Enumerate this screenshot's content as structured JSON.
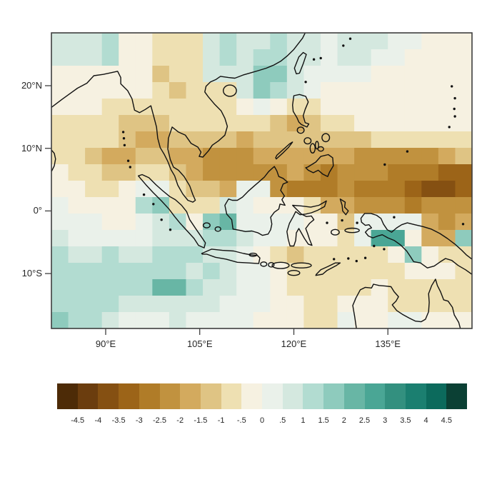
{
  "figure": {
    "description": "Gridded anomaly map over the Maritime Continent with brown-to-teal diverging color scale and horizontal colorbar legend"
  },
  "chart_data": {
    "type": "heatmap",
    "title": "",
    "xlabel": "",
    "ylabel": "",
    "lon_range": [
      81.34,
      148.42
    ],
    "lat_range": [
      -18.77,
      28.44
    ],
    "x_ticks": [
      {
        "label": "90°E",
        "lon": 90
      },
      {
        "label": "105°E",
        "lon": 105
      },
      {
        "label": "120°E",
        "lon": 120
      },
      {
        "label": "135°E",
        "lon": 135
      }
    ],
    "y_ticks": [
      {
        "label": "20°N",
        "lat": 20
      },
      {
        "label": "10°N",
        "lat": 10
      },
      {
        "label": "0°",
        "lat": 0
      },
      {
        "label": "10°S",
        "lat": -10
      }
    ],
    "colorbar": {
      "labels": [
        "-4.5",
        "-4",
        "-3.5",
        "-3",
        "-2.5",
        "-2",
        "-1.5",
        "-1",
        "-.5",
        "0",
        ".5",
        "1",
        "1.5",
        "2",
        "2.5",
        "3",
        "3.5",
        "4",
        "4.5"
      ],
      "palette": [
        "#4d2b07",
        "#6b3d0e",
        "#855012",
        "#9c6418",
        "#b07c28",
        "#c1923f",
        "#d3aa5e",
        "#dfc484",
        "#eee0b2",
        "#f6f1e1",
        "#eaf1ea",
        "#d4e8df",
        "#b2dcd1",
        "#8ecbbd",
        "#68b6a5",
        "#4aa695",
        "#33907f",
        "#1b7f70",
        "#0c6a5c",
        "#0b4034"
      ]
    },
    "grid_cols": 25,
    "grid_rows": 18,
    "grid": [
      [
        11,
        11,
        11,
        12,
        9,
        9,
        8,
        8,
        8,
        11,
        12,
        11,
        11,
        12,
        11,
        11,
        10,
        11,
        11,
        11,
        10,
        10,
        9,
        9,
        9
      ],
      [
        11,
        11,
        11,
        12,
        9,
        9,
        8,
        8,
        8,
        11,
        12,
        11,
        12,
        12,
        11,
        11,
        10,
        11,
        11,
        10,
        10,
        9,
        9,
        9,
        9
      ],
      [
        9,
        9,
        9,
        9,
        9,
        9,
        7,
        8,
        8,
        11,
        11,
        11,
        13,
        13,
        11,
        10,
        10,
        10,
        10,
        9,
        9,
        9,
        9,
        9,
        9
      ],
      [
        9,
        9,
        9,
        9,
        9,
        9,
        8,
        7,
        8,
        8,
        8,
        11,
        13,
        12,
        11,
        10,
        9,
        9,
        9,
        9,
        9,
        9,
        9,
        9,
        9
      ],
      [
        9,
        9,
        9,
        8,
        8,
        8,
        8,
        8,
        8,
        8,
        8,
        9,
        10,
        9,
        8,
        8,
        9,
        9,
        9,
        9,
        9,
        9,
        9,
        9,
        9
      ],
      [
        8,
        8,
        8,
        8,
        7,
        7,
        7,
        8,
        8,
        8,
        8,
        8,
        8,
        7,
        6,
        7,
        8,
        8,
        9,
        9,
        9,
        9,
        9,
        9,
        9
      ],
      [
        8,
        8,
        8,
        8,
        7,
        6,
        6,
        7,
        7,
        7,
        7,
        6,
        7,
        7,
        7,
        7,
        7,
        7,
        7,
        8,
        8,
        8,
        8,
        8,
        8
      ],
      [
        8,
        8,
        7,
        6,
        6,
        7,
        7,
        6,
        6,
        5,
        5,
        5,
        6,
        6,
        6,
        6,
        6,
        6,
        5,
        5,
        5,
        5,
        5,
        6,
        7
      ],
      [
        9,
        8,
        8,
        7,
        7,
        8,
        8,
        7,
        6,
        5,
        5,
        5,
        5,
        5,
        6,
        5,
        4,
        5,
        5,
        5,
        4,
        4,
        4,
        3,
        3
      ],
      [
        9,
        9,
        8,
        8,
        9,
        10,
        10,
        8,
        7,
        7,
        6,
        10,
        10,
        5,
        4,
        4,
        4,
        5,
        4,
        4,
        4,
        3,
        2,
        2,
        3
      ],
      [
        10,
        9,
        9,
        9,
        9,
        12,
        13,
        8,
        8,
        8,
        11,
        10,
        9,
        9,
        9,
        8,
        6,
        6,
        5,
        5,
        5,
        4,
        5,
        5,
        5
      ],
      [
        10,
        10,
        10,
        9,
        9,
        10,
        11,
        12,
        9,
        13,
        14,
        10,
        10,
        10,
        10,
        9,
        9,
        7,
        10,
        10,
        10,
        10,
        6,
        5,
        6
      ],
      [
        11,
        10,
        10,
        10,
        10,
        10,
        11,
        11,
        11,
        12,
        12,
        11,
        10,
        10,
        9,
        9,
        9,
        8,
        10,
        15,
        15,
        9,
        6,
        6,
        13
      ],
      [
        12,
        11,
        11,
        12,
        11,
        11,
        12,
        12,
        12,
        11,
        11,
        10,
        9,
        8,
        7,
        8,
        8,
        8,
        8,
        8,
        9,
        13,
        9,
        8,
        8
      ],
      [
        12,
        12,
        12,
        12,
        12,
        12,
        12,
        12,
        11,
        12,
        11,
        10,
        10,
        9,
        8,
        8,
        8,
        8,
        8,
        8,
        8,
        9,
        9,
        9,
        8
      ],
      [
        12,
        12,
        12,
        12,
        12,
        12,
        14,
        14,
        12,
        11,
        11,
        10,
        10,
        9,
        8,
        8,
        8,
        8,
        8,
        9,
        8,
        8,
        8,
        8,
        8
      ],
      [
        12,
        12,
        12,
        12,
        11,
        11,
        11,
        11,
        11,
        11,
        10,
        10,
        10,
        9,
        9,
        8,
        8,
        9,
        9,
        9,
        8,
        8,
        8,
        8,
        8
      ],
      [
        13,
        12,
        12,
        11,
        10,
        10,
        10,
        11,
        10,
        10,
        10,
        10,
        9,
        9,
        9,
        8,
        8,
        10,
        9,
        9,
        10,
        10,
        9,
        9,
        9
      ]
    ]
  }
}
